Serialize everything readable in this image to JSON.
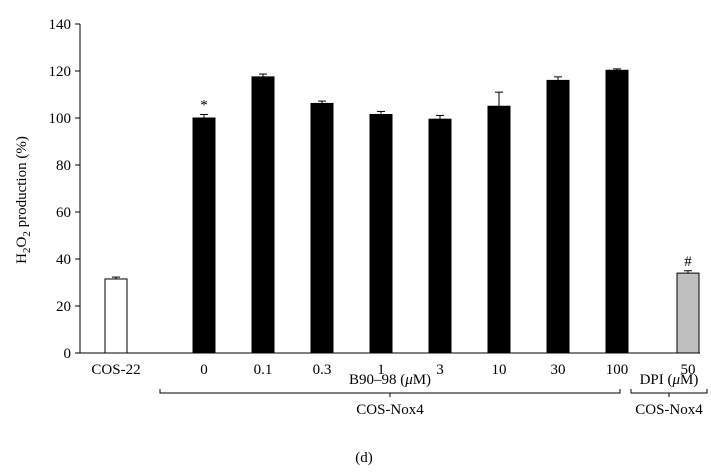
{
  "chart_data": {
    "type": "bar",
    "ylabel_main": "H",
    "ylabel_sub1": "2",
    "ylabel_mid": "O",
    "ylabel_sub2": "2",
    "ylabel_rest": " production (%)",
    "ylim": [
      0,
      140
    ],
    "yticks": [
      0,
      20,
      40,
      60,
      80,
      100,
      120,
      140
    ],
    "categories": [
      "COS-22",
      "0",
      "0.1",
      "0.3",
      "1",
      "3",
      "10",
      "30",
      "100",
      "50"
    ],
    "values": [
      31.5,
      100,
      117.5,
      106.2,
      101.5,
      99.5,
      105,
      116,
      120.3,
      34
    ],
    "errors": [
      0.8,
      1.5,
      1.2,
      1.0,
      1.3,
      1.6,
      6,
      1.5,
      0.6,
      1.0
    ],
    "bar_fills": [
      "#ffffff",
      "#000000",
      "#000000",
      "#000000",
      "#000000",
      "#000000",
      "#000000",
      "#000000",
      "#000000",
      "#bfbfbf"
    ],
    "annotations": [
      {
        "category_index": 1,
        "text": "*"
      },
      {
        "category_index": 9,
        "text": "#"
      }
    ],
    "group_labels": {
      "b90_prefix": "B90–98 (",
      "b90_mu": "μ",
      "b90_suffix": "M)",
      "dpi_prefix": "DPI (",
      "dpi_mu": "μ",
      "dpi_suffix": "M)",
      "cos_nox4_left": "COS-Nox4",
      "cos_nox4_right": "COS-Nox4"
    },
    "panel_label": "(d)",
    "grid": false,
    "legend": "none"
  }
}
